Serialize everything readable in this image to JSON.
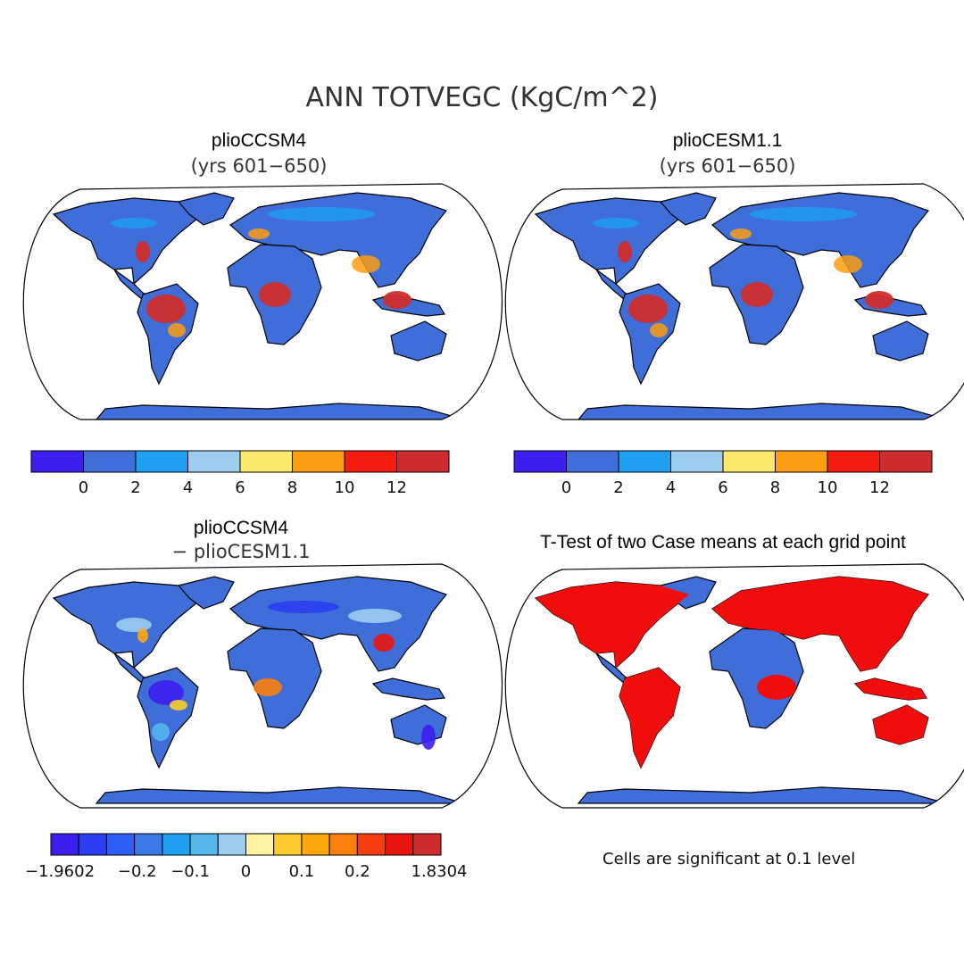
{
  "main_title": "ANN TOTVEGC (KgC/m^2)",
  "panels": [
    {
      "title": "plioCCSM4",
      "subtitle": "(yrs 601−650)"
    },
    {
      "title": "plioCESM1.1",
      "subtitle": "(yrs 601−650)"
    },
    {
      "title": "plioCCSM4",
      "subtitle": "− plioCESM1.1"
    },
    {
      "title": "T-Test of two Case means at each grid point",
      "subtitle": ""
    }
  ],
  "colorbar_abs": {
    "colors": [
      "#3c1ef0",
      "#3f6ed9",
      "#1e9ff0",
      "#9ccdee",
      "#fce86a",
      "#fb9d12",
      "#f41d0f",
      "#cf2d2d"
    ],
    "labels": [
      "0",
      "2",
      "4",
      "6",
      "8",
      "10",
      "12"
    ]
  },
  "colorbar_diff": {
    "colors": [
      "#3c1ef0",
      "#2a3df0",
      "#2d5ef5",
      "#3a7ae8",
      "#1e9ff0",
      "#55b6ec",
      "#9ccdee",
      "#fdf3a2",
      "#fdcc2c",
      "#fca80f",
      "#fb7f0c",
      "#f63d10",
      "#e8150e",
      "#cf2d2d"
    ],
    "labels": [
      "−1.9602",
      "−0.2",
      "−0.1",
      "0",
      "0.1",
      "0.2",
      "1.8304"
    ]
  },
  "note": "Cells are significant at 0.1 level",
  "colors": {
    "land_base": "#3f6ed9",
    "diff_base": "#fdf3a2",
    "signif": "#f20d0d"
  }
}
